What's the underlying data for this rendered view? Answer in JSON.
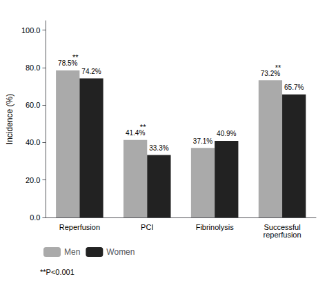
{
  "chart_data": {
    "type": "bar",
    "categories": [
      "Reperfusion",
      "PCI",
      "Fibrinolysis",
      "Successful\nreperfusion"
    ],
    "series": [
      {
        "name": "Men",
        "color": "#aaaaaa",
        "values": [
          78.5,
          41.4,
          37.1,
          73.2
        ],
        "value_labels": [
          "78.5%",
          "41.4%",
          "37.1%",
          "73.2%"
        ]
      },
      {
        "name": "Women",
        "color": "#222222",
        "values": [
          74.2,
          33.3,
          40.9,
          65.7
        ],
        "value_labels": [
          "74.2%",
          "33.3%",
          "40.9%",
          "65.7%"
        ]
      }
    ],
    "ylabel": "Incidence (%)",
    "ylim": [
      0,
      105
    ],
    "yticks": [
      {
        "value": 0,
        "label": "0.0"
      },
      {
        "value": 20,
        "label": "20.0"
      },
      {
        "value": 40,
        "label": "40.0"
      },
      {
        "value": 60,
        "label": "60.0"
      },
      {
        "value": 80,
        "label": "80.0"
      },
      {
        "value": 100,
        "label": "100.0"
      }
    ],
    "grid": false,
    "data_labels": true,
    "legend": "lower left",
    "annotations": [
      {
        "text": "**",
        "category": "Reperfusion",
        "series": "Men"
      },
      {
        "text": "**",
        "category": "PCI",
        "series": "Men"
      },
      {
        "text": "**",
        "category": "Successful\nreperfusion",
        "series": "Men"
      }
    ],
    "footnote": "**P<0.001"
  }
}
